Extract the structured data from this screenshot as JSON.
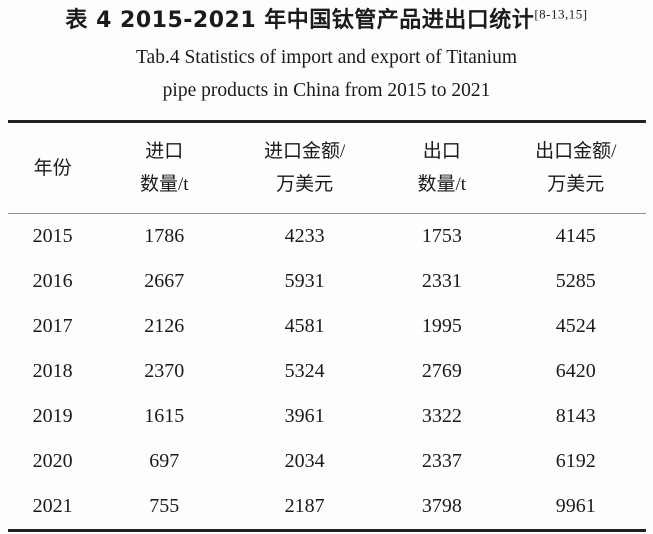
{
  "header": {
    "caption_zh": "表 4  2015-2021 年中国钛管产品进出口统计",
    "caption_ref": "[8-13,15]",
    "caption_en_line1": "Tab.4   Statistics of import and export of Titanium",
    "caption_en_line2": "pipe products in China from 2015 to 2021"
  },
  "table": {
    "columns": [
      {
        "id": "year",
        "line1": "年份",
        "line2": ""
      },
      {
        "id": "import-qty",
        "line1": "进口",
        "line2": "数量/t"
      },
      {
        "id": "import-value",
        "line1": "进口金额/",
        "line2": "万美元"
      },
      {
        "id": "export-qty",
        "line1": "出口",
        "line2": "数量/t"
      },
      {
        "id": "export-value",
        "line1": "出口金额/",
        "line2": "万美元"
      }
    ],
    "rows": [
      [
        "2015",
        "1786",
        "4233",
        "1753",
        "4145"
      ],
      [
        "2016",
        "2667",
        "5931",
        "2331",
        "5285"
      ],
      [
        "2017",
        "2126",
        "4581",
        "1995",
        "4524"
      ],
      [
        "2018",
        "2370",
        "5324",
        "2769",
        "6420"
      ],
      [
        "2019",
        "1615",
        "3961",
        "3322",
        "8143"
      ],
      [
        "2020",
        "697",
        "2034",
        "2337",
        "6192"
      ],
      [
        "2021",
        "755",
        "2187",
        "3798",
        "9961"
      ]
    ]
  },
  "chart_data": {
    "type": "table",
    "title": "表 4 2015-2021 年中国钛管产品进出口统计 (Tab.4 Statistics of import and export of Titanium pipe products in China from 2015 to 2021)",
    "reference": "[8-13,15]",
    "categories": [
      "2015",
      "2016",
      "2017",
      "2018",
      "2019",
      "2020",
      "2021"
    ],
    "series": [
      {
        "name": "进口数量/t",
        "values": [
          1786,
          2667,
          2126,
          2370,
          1615,
          697,
          755
        ]
      },
      {
        "name": "进口金额/万美元",
        "values": [
          4233,
          5931,
          4581,
          5324,
          3961,
          2034,
          2187
        ]
      },
      {
        "name": "出口数量/t",
        "values": [
          1753,
          2331,
          1995,
          2769,
          3322,
          2337,
          3798
        ]
      },
      {
        "name": "出口金额/万美元",
        "values": [
          4145,
          5285,
          4524,
          6420,
          8143,
          6192,
          9961
        ]
      }
    ],
    "colors": {
      "text": "#1b1b1b",
      "rule_heavy": "#222222",
      "rule_light": "#909090",
      "background": "#fdfdfd"
    }
  }
}
